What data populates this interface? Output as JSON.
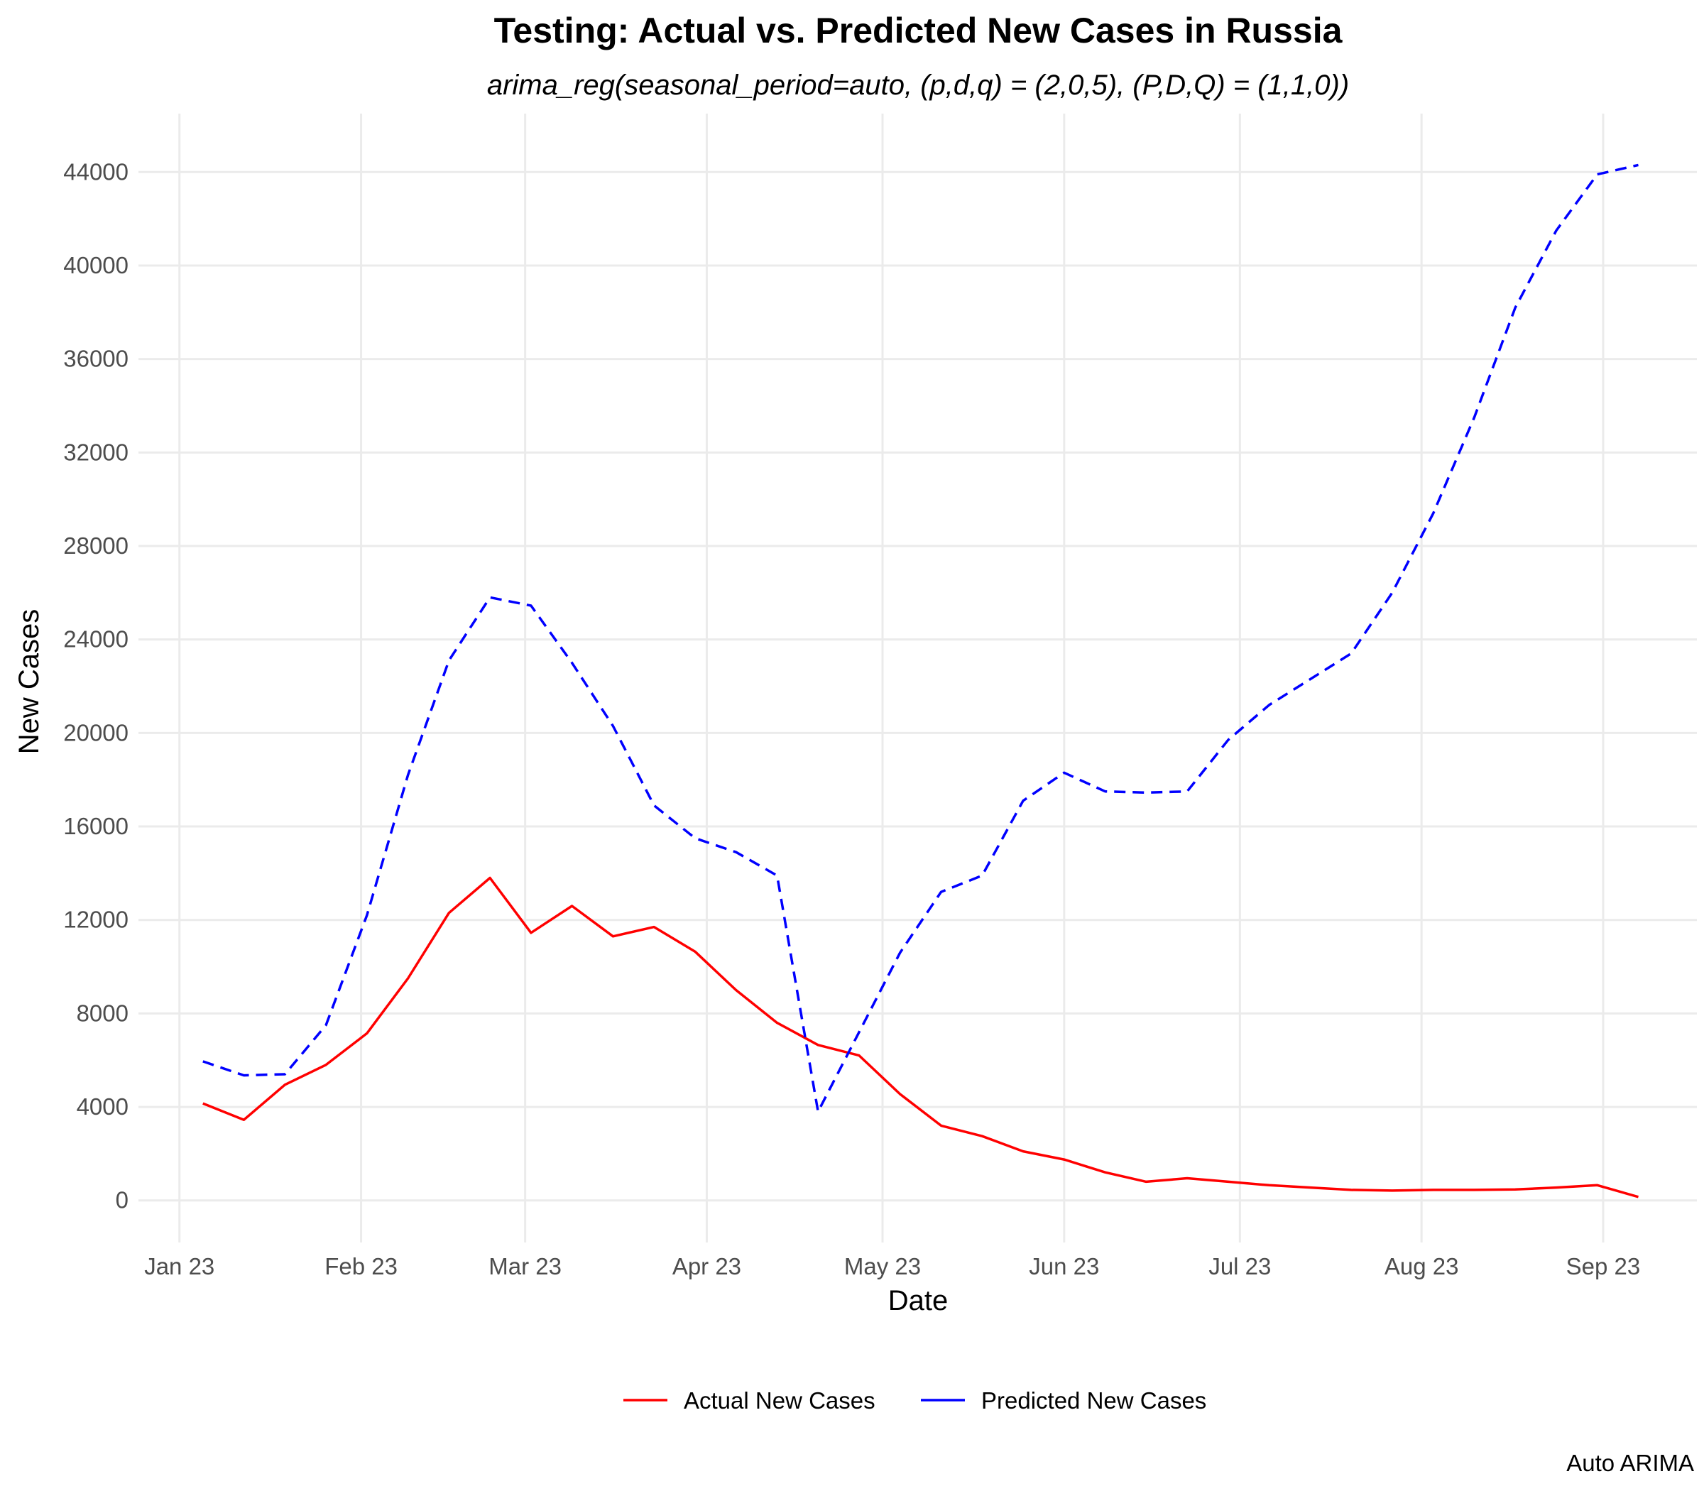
{
  "chart_data": {
    "type": "line",
    "title": "Testing: Actual vs. Predicted New Cases in Russia",
    "subtitle": "arima_reg(seasonal_period=auto, (p,d,q) = (2,0,5), (P,D,Q) = (1,1,0))",
    "xlabel": "Date",
    "ylabel": "New Cases",
    "caption": "Auto ARIMA",
    "ylim": [
      -1800,
      46500
    ],
    "y_ticks": [
      0,
      4000,
      8000,
      12000,
      16000,
      20000,
      24000,
      28000,
      32000,
      36000,
      40000,
      44000
    ],
    "y_tick_labels": [
      "0",
      "4000",
      "8000",
      "12000",
      "16000",
      "20000",
      "24000",
      "28000",
      "32000",
      "36000",
      "40000",
      "44000"
    ],
    "xlim": [
      "2022-12-25",
      "2023-09-17"
    ],
    "x_ticks": [
      "2023-01-01",
      "2023-02-01",
      "2023-03-01",
      "2023-04-01",
      "2023-05-01",
      "2023-06-01",
      "2023-07-01",
      "2023-08-01",
      "2023-09-01"
    ],
    "x_tick_labels": [
      "Jan 23",
      "Feb 23",
      "Mar 23",
      "Apr 23",
      "May 23",
      "Jun 23",
      "Jul 23",
      "Aug 23",
      "Sep 23"
    ],
    "grid": true,
    "legend_position": "bottom",
    "x": [
      "2023-01-05",
      "2023-01-12",
      "2023-01-19",
      "2023-01-26",
      "2023-02-02",
      "2023-02-09",
      "2023-02-16",
      "2023-02-23",
      "2023-03-02",
      "2023-03-09",
      "2023-03-16",
      "2023-03-23",
      "2023-03-30",
      "2023-04-06",
      "2023-04-13",
      "2023-04-20",
      "2023-04-27",
      "2023-05-04",
      "2023-05-11",
      "2023-05-18",
      "2023-05-25",
      "2023-06-01",
      "2023-06-08",
      "2023-06-15",
      "2023-06-22",
      "2023-06-29",
      "2023-07-06",
      "2023-07-13",
      "2023-07-20",
      "2023-07-27",
      "2023-08-03",
      "2023-08-10",
      "2023-08-17",
      "2023-08-24",
      "2023-08-31",
      "2023-09-07"
    ],
    "series": [
      {
        "name": "Actual New Cases",
        "color": "#ff0000",
        "dash": "solid",
        "values": [
          4150,
          3450,
          4950,
          5800,
          7150,
          9500,
          12300,
          13800,
          11450,
          12600,
          11300,
          11700,
          10650,
          9000,
          7600,
          6650,
          6200,
          4550,
          3200,
          2750,
          2100,
          1750,
          1200,
          800,
          950,
          800,
          650,
          550,
          450,
          420,
          450,
          450,
          470,
          550,
          650,
          150
        ]
      },
      {
        "name": "Predicted New Cases",
        "color": "#0000ff",
        "dash": "dashed",
        "values": [
          5950,
          5350,
          5400,
          7500,
          12200,
          18200,
          23100,
          25800,
          25450,
          23000,
          20300,
          16900,
          15500,
          14900,
          13900,
          3800,
          7200,
          10600,
          13200,
          13900,
          17100,
          18300,
          17500,
          17450,
          17500,
          19700,
          21200,
          22300,
          23400,
          26000,
          29400,
          33500,
          38200,
          41500,
          43900,
          44300
        ]
      }
    ]
  }
}
